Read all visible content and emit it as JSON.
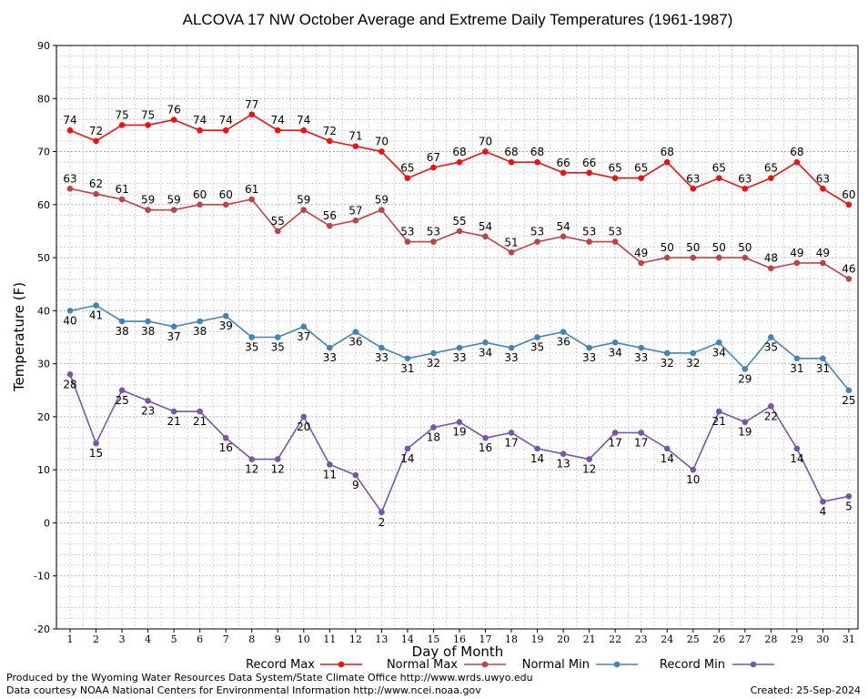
{
  "chart_data": {
    "type": "line",
    "title": "ALCOVA 17 NW October Average and Extreme Daily Temperatures (1961-1987)",
    "xlabel": "Day of Month",
    "ylabel": "Temperature (F)",
    "ylim": [
      -20,
      90
    ],
    "yticks": [
      -20,
      -10,
      0,
      10,
      20,
      30,
      40,
      50,
      60,
      70,
      80,
      90
    ],
    "x": [
      1,
      2,
      3,
      4,
      5,
      6,
      7,
      8,
      9,
      10,
      11,
      12,
      13,
      14,
      15,
      16,
      17,
      18,
      19,
      20,
      21,
      22,
      23,
      24,
      25,
      26,
      27,
      28,
      29,
      30,
      31
    ],
    "grid": true,
    "legend_position": "bottom",
    "series": [
      {
        "name": "Record Max",
        "color": "#ee1111",
        "label_pos": "above",
        "values": [
          74,
          72,
          75,
          75,
          76,
          74,
          74,
          77,
          74,
          74,
          72,
          71,
          70,
          65,
          67,
          68,
          70,
          68,
          68,
          66,
          66,
          65,
          65,
          68,
          63,
          65,
          63,
          65,
          68,
          63,
          60
        ]
      },
      {
        "name": "Normal Max",
        "color": "#bb4444",
        "label_pos": "above",
        "values": [
          63,
          62,
          61,
          59,
          59,
          60,
          60,
          61,
          55,
          59,
          56,
          57,
          59,
          53,
          53,
          55,
          54,
          51,
          53,
          54,
          53,
          53,
          49,
          50,
          50,
          50,
          50,
          48,
          49,
          49,
          46
        ]
      },
      {
        "name": "Normal Min",
        "color": "#4682b4",
        "label_pos": "below",
        "values": [
          40,
          41,
          38,
          38,
          37,
          38,
          39,
          35,
          35,
          37,
          33,
          36,
          33,
          31,
          32,
          33,
          34,
          33,
          35,
          36,
          33,
          34,
          33,
          32,
          32,
          34,
          29,
          35,
          31,
          31,
          25
        ]
      },
      {
        "name": "Record Min",
        "color": "#7755aa",
        "label_pos": "below",
        "values": [
          28,
          15,
          25,
          23,
          21,
          21,
          16,
          12,
          12,
          20,
          11,
          9,
          2,
          14,
          18,
          19,
          16,
          17,
          14,
          13,
          12,
          17,
          17,
          14,
          10,
          21,
          19,
          22,
          14,
          4,
          5
        ]
      }
    ]
  },
  "footer": {
    "produced_by": "Produced by the Wyoming Water Resources Data System/State Climate Office http://www.wrds.uwyo.edu",
    "data_courtesy": "Data courtesy NOAA National Centers for Environmental Information http://www.ncei.noaa.gov",
    "created": "Created: 25-Sep-2024"
  }
}
